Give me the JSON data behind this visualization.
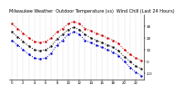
{
  "title": "Milwaukee Weather  Outdoor Temperature (vs)  Wind Chill (Last 24 Hours)",
  "title_fontsize": 3.5,
  "background_color": "#ffffff",
  "grid_color": "#aaaaaa",
  "outdoor_temp": [
    32,
    28,
    24,
    20,
    17,
    16,
    17,
    20,
    25,
    28,
    32,
    34,
    32,
    28,
    26,
    24,
    22,
    20,
    18,
    15,
    10,
    6,
    3,
    1
  ],
  "wind_chill": [
    18,
    14,
    10,
    6,
    3,
    2,
    3,
    7,
    14,
    18,
    23,
    25,
    23,
    18,
    16,
    14,
    12,
    10,
    8,
    5,
    0,
    -5,
    -9,
    -12
  ],
  "feels_like": [
    25,
    21,
    17,
    13,
    10,
    9,
    10,
    13,
    19,
    23,
    27,
    29,
    27,
    23,
    20,
    18,
    16,
    14,
    12,
    9,
    4,
    0,
    -4,
    -6
  ],
  "temp_color": "#cc0000",
  "chill_color": "#0000cc",
  "feels_color": "#111111",
  "ylim_min": -15,
  "ylim_max": 40,
  "ytick_values": [
    30,
    20,
    10,
    0,
    -10
  ],
  "ytick_labels": [
    "30",
    "20",
    "10",
    "0",
    "-10"
  ],
  "ylabel_fontsize": 3.0,
  "xlabel_fontsize": 2.8,
  "n_points": 24,
  "x_tick_step": 2
}
